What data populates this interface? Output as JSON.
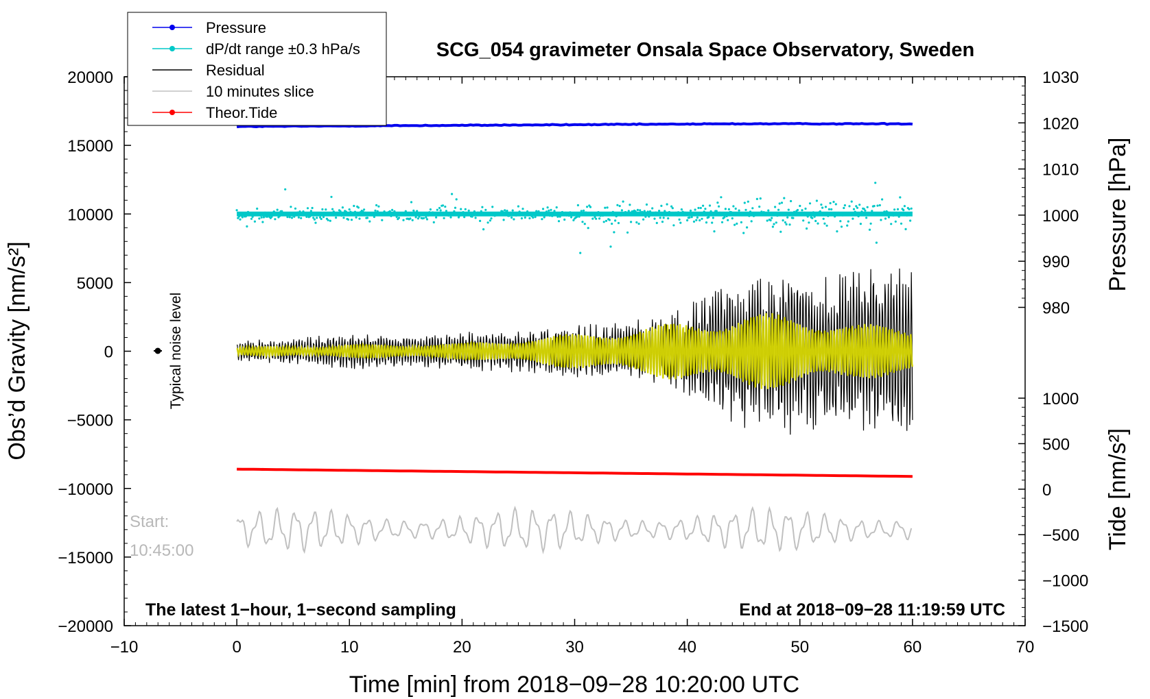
{
  "chart_data": {
    "type": "line",
    "title": "SCG_054 gravimeter Onsala Space Observatory, Sweden",
    "xlabel": "Time [min] from 2018−09−28 10:20:00 UTC",
    "ylabel_left": "Obs’d Gravity [nm/s²]",
    "ylabel_right_top": "Pressure [hPa]",
    "ylabel_right_bottom": "Tide [nm/s²]",
    "xlim": [
      -10,
      70
    ],
    "ylim": [
      -20000,
      20000
    ],
    "pressure_axis_range": [
      980,
      1030
    ],
    "tide_axis_range": [
      -1500,
      1000
    ],
    "x_ticks": [
      "−10",
      "0",
      "10",
      "20",
      "30",
      "40",
      "50",
      "60",
      "70"
    ],
    "y_ticks_left": [
      "20000",
      "15000",
      "10000",
      "5000",
      "0",
      "−5000",
      "−10000",
      "−15000",
      "−20000"
    ],
    "y_ticks_pressure": [
      "1030",
      "1020",
      "1010",
      "1000",
      "990",
      "980"
    ],
    "y_ticks_tide": [
      "1000",
      "500",
      "0",
      "−500",
      "−1000",
      "−1500"
    ],
    "legend": {
      "position": "top-left",
      "entries": [
        {
          "label": "Pressure",
          "color": "#0000ee",
          "marker": true
        },
        {
          "label": "dP/dt range ±0.3 hPa/s",
          "color": "#00c8c8",
          "marker": true
        },
        {
          "label": "Residual",
          "color": "#000000",
          "marker": false
        },
        {
          "label": "10 minutes slice",
          "color": "#c0c0c0",
          "marker": false
        },
        {
          "label": "Theor.Tide",
          "color": "#ff0000",
          "marker": true
        }
      ]
    },
    "annotations": {
      "noise_label": "Typical noise level",
      "start_label": "Start:",
      "start_time": "10:45:00",
      "bottom_left": "The latest 1−hour, 1−second sampling",
      "bottom_right": "End at 2018−09−28 11:19:59 UTC"
    },
    "series": [
      {
        "name": "Pressure",
        "axis": "pressure",
        "unit": "hPa",
        "x": [
          0,
          15,
          30,
          45,
          60
        ],
        "values": [
          1019.2,
          1019.4,
          1019.6,
          1019.8,
          1019.8
        ]
      },
      {
        "name": "dP/dt",
        "axis": "gravity",
        "note": "scatter around 10000 with spread about ±1000",
        "center": 10000
      },
      {
        "name": "Residual",
        "axis": "gravity",
        "x": [
          0,
          5,
          10,
          15,
          20,
          25,
          30,
          35,
          40,
          42,
          45,
          48,
          50,
          52,
          55,
          58,
          60
        ],
        "amplitude": [
          800,
          1000,
          1400,
          1200,
          1500,
          1600,
          2000,
          2200,
          3500,
          5000,
          6000,
          6500,
          7000,
          5500,
          6000,
          7000,
          6000
        ]
      },
      {
        "name": "Residual (filtered)",
        "axis": "gravity",
        "color": "#d4d400",
        "x": [
          0,
          10,
          20,
          30,
          40,
          45,
          50,
          55,
          60
        ],
        "amplitude": [
          300,
          500,
          600,
          1300,
          2200,
          2800,
          2800,
          2000,
          2000
        ]
      },
      {
        "name": "Theor.Tide",
        "axis": "tide",
        "unit": "nm/s²",
        "x": [
          0,
          60
        ],
        "values": [
          220,
          140
        ]
      },
      {
        "name": "10 minutes slice",
        "axis": "gravity",
        "center": -13000,
        "amplitude": 1500
      }
    ]
  }
}
